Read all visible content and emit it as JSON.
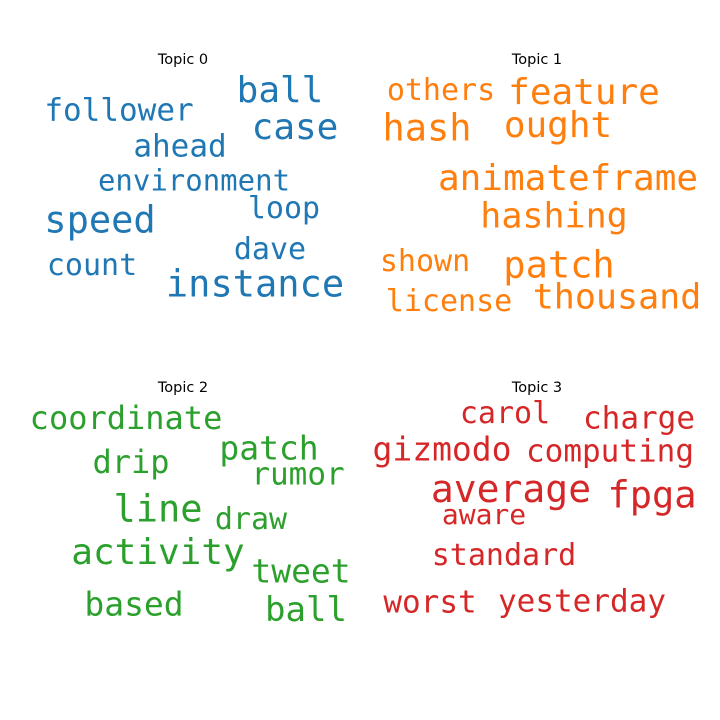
{
  "chart_data": [
    {
      "type": "wordcloud",
      "title": "Topic 0",
      "color": "#1f77b4",
      "words": [
        "follower",
        "ball",
        "case",
        "ahead",
        "environment",
        "speed",
        "loop",
        "dave",
        "count",
        "instance"
      ]
    },
    {
      "type": "wordcloud",
      "title": "Topic 1",
      "color": "#ff7f0e",
      "words": [
        "others",
        "feature",
        "hash",
        "ought",
        "animateframe",
        "hashing",
        "shown",
        "patch",
        "license",
        "thousand"
      ]
    },
    {
      "type": "wordcloud",
      "title": "Topic 2",
      "color": "#2ca02c",
      "words": [
        "coordinate",
        "patch",
        "drip",
        "rumor",
        "line",
        "draw",
        "activity",
        "tweet",
        "based",
        "ball"
      ]
    },
    {
      "type": "wordcloud",
      "title": "Topic 3",
      "color": "#d62728",
      "words": [
        "carol",
        "charge",
        "gizmodo",
        "computing",
        "average",
        "fpga",
        "aware",
        "standard",
        "worst",
        "yesterday"
      ]
    }
  ]
}
